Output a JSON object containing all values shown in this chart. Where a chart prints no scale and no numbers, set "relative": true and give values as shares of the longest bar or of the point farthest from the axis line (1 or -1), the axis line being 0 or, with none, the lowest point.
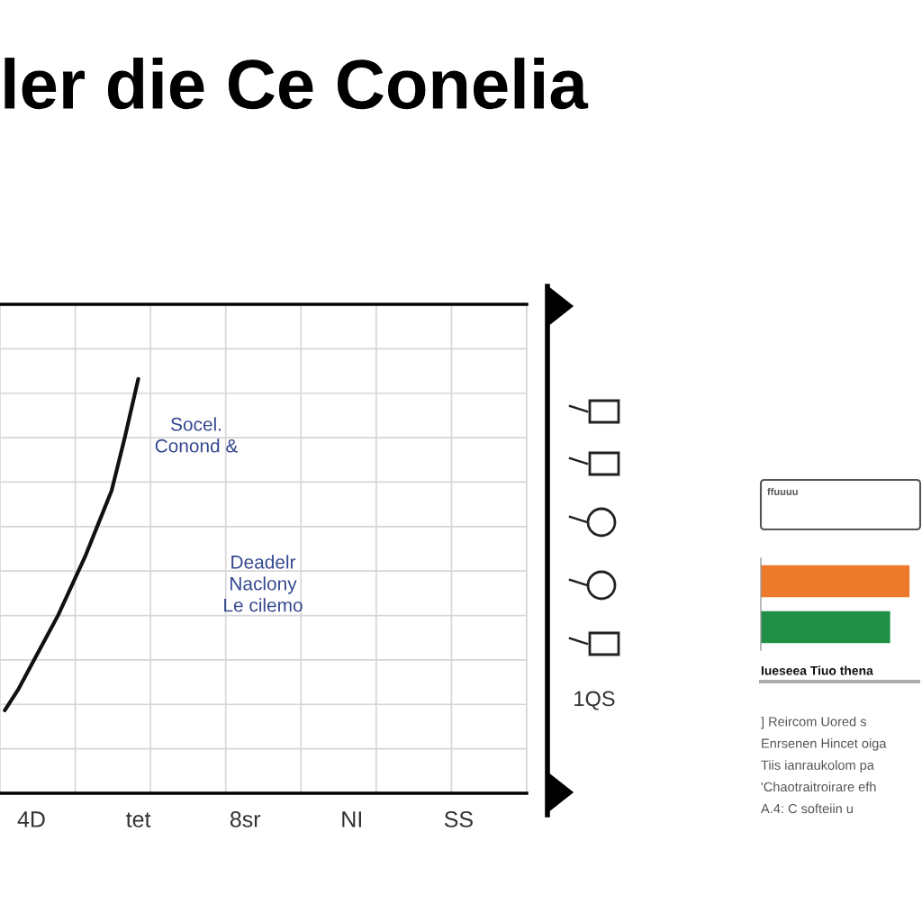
{
  "chart_data": [
    {
      "type": "line",
      "title": "ler die Ce Conelia",
      "relative": true,
      "categories": [
        null,
        null,
        "4D",
        null,
        null,
        null,
        null,
        null,
        null,
        null,
        "tet",
        null,
        null,
        null,
        null,
        null,
        null,
        null,
        "8sr",
        null,
        null,
        null,
        null,
        null,
        null,
        null,
        "NI",
        null,
        null,
        null,
        null,
        null,
        null,
        null,
        "SS",
        null
      ],
      "values": [
        0.2,
        0.25,
        0.31,
        0.37,
        0.43,
        0.5,
        0.57,
        0.65,
        0.73,
        0.86,
        1.0,
        null,
        null,
        null,
        null,
        null,
        null,
        null,
        null,
        null,
        null,
        null,
        null,
        null,
        null,
        null,
        null,
        null,
        null,
        null,
        null,
        null,
        null,
        null,
        null,
        null
      ],
      "color": "#111111",
      "grid": true,
      "annotations": [
        "Socel.\nConond &",
        "Deadelr\nNaclony\nLe cilemo",
        "1QS"
      ]
    },
    {
      "type": "bar",
      "orientation": "horizontal",
      "relative": true,
      "categories": [
        null,
        null
      ],
      "values": [
        1,
        0.87
      ],
      "colors": [
        "#ec7a2a",
        "#1f8f45"
      ],
      "annotations": [
        "ffuuuu",
        "Iueseea Tiuo thena",
        "] Reircom Uored s\nEnrsenen Hincet oiga\nTiis ianraukolom pa\n'Chaotraitroirare efh\nA.4: C softeiin u"
      ]
    }
  ]
}
